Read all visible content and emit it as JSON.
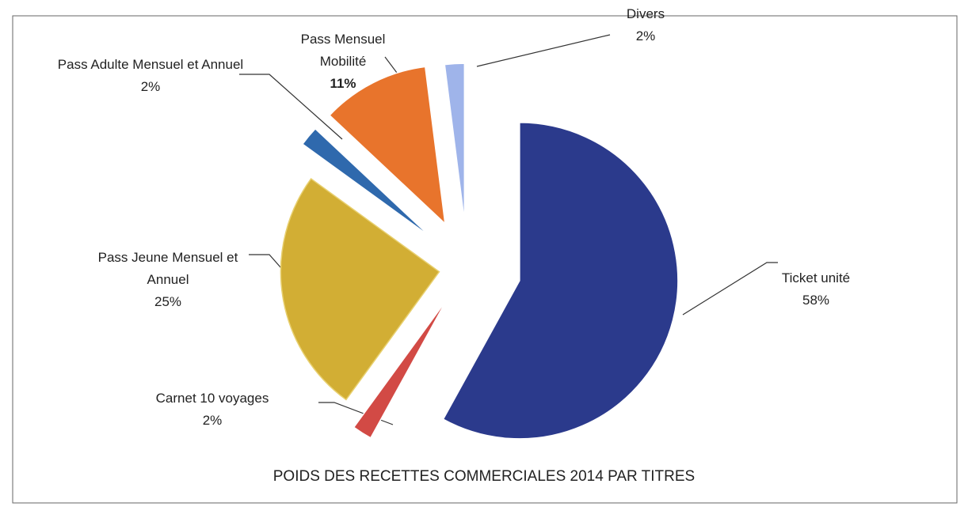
{
  "chart_data": {
    "type": "pie",
    "title": "POIDS DES RECETTES COMMERCIALES 2014 PAR TITRES",
    "categories": [
      "Ticket unité",
      "Carnet 10 voyages",
      "Pass Jeune Mensuel et Annuel",
      "Pass Adulte Mensuel et Annuel",
      "Pass Mensuel Mobilité",
      "Divers"
    ],
    "values": [
      58,
      2,
      25,
      2,
      11,
      2
    ],
    "value_labels": [
      "58%",
      "2%",
      "25%",
      "2%",
      "11%",
      "2%"
    ],
    "colors": [
      "#2b3a8c",
      "#d24a45",
      "#d2ae34",
      "#2f69ad",
      "#e8742c",
      "#9fb4ea"
    ]
  }
}
